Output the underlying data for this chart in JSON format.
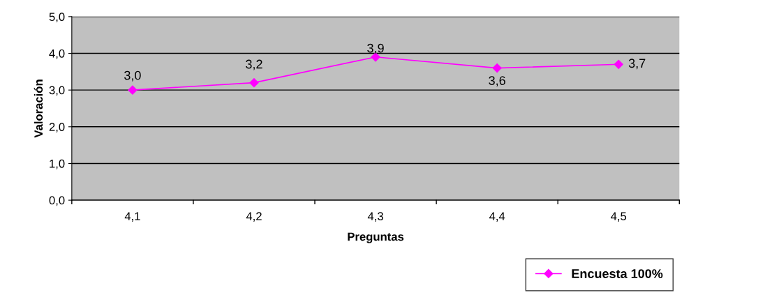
{
  "chart_data": {
    "type": "line",
    "xlabel": "Preguntas",
    "ylabel": "Valoración",
    "categories": [
      "4,1",
      "4,2",
      "4,3",
      "4,4",
      "4,5"
    ],
    "series": [
      {
        "name": "Encuesta 100%",
        "color": "#ff00ff",
        "values": [
          3.0,
          3.2,
          3.9,
          3.6,
          3.7
        ],
        "value_labels": [
          "3,0",
          "3,2",
          "3,9",
          "3,6",
          "3,7"
        ]
      }
    ],
    "ylim": [
      0,
      5
    ],
    "yticks": [
      {
        "value": 0,
        "label": "0,0"
      },
      {
        "value": 1,
        "label": "1,0"
      },
      {
        "value": 2,
        "label": "2,0"
      },
      {
        "value": 3,
        "label": "3,0"
      },
      {
        "value": 4,
        "label": "4,0"
      },
      {
        "value": 5,
        "label": "5,0"
      }
    ],
    "grid": "y",
    "legend": "bottom right",
    "marker": "diamond",
    "line_style": "solid"
  }
}
